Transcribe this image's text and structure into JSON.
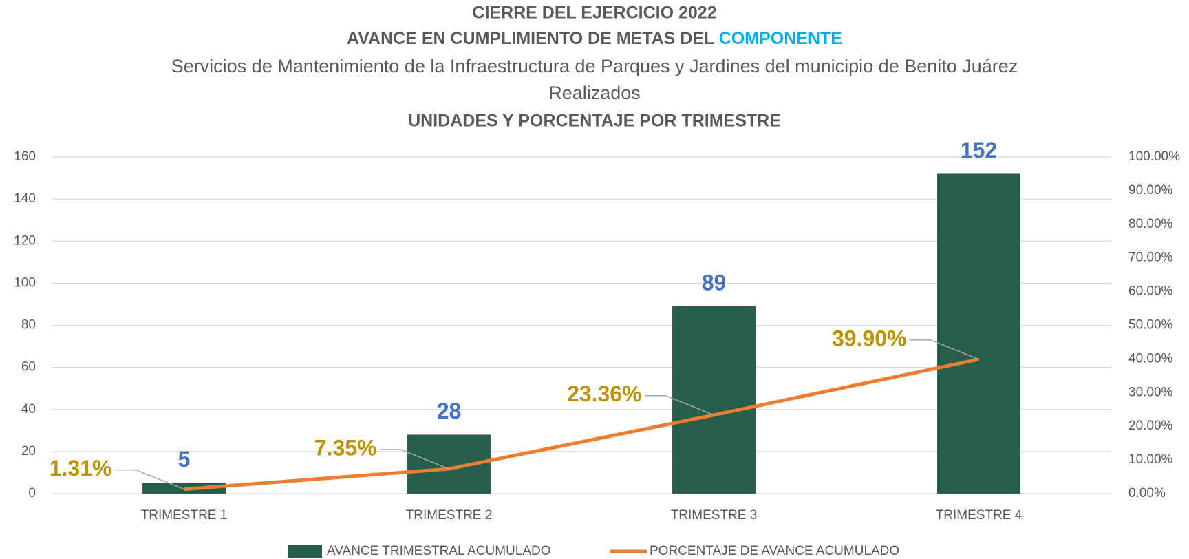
{
  "chart_data": {
    "type": "bar_line",
    "title": [
      "CIERRE DEL EJERCICIO 2022",
      "AVANCE EN CUMPLIMIENTO DE METAS DEL ",
      "COMPONENTE"
    ],
    "subtitle": [
      "Servicios de Mantenimiento de la Infraestructura de Parques y Jardines del municipio de Benito Juárez",
      "Realizados",
      "UNIDADES Y PORCENTAJE POR TRIMESTRE"
    ],
    "categories": [
      "TRIMESTRE 1",
      "TRIMESTRE 2",
      "TRIMESTRE 3",
      "TRIMESTRE 4"
    ],
    "series": [
      {
        "name": "AVANCE TRIMESTRAL ACUMULADO",
        "type": "bar",
        "color": "#265e4b",
        "label_color": "#4472c4",
        "values": [
          5,
          28,
          89,
          152
        ]
      },
      {
        "name": "PORCENTAJE DE AVANCE ACUMULADO",
        "type": "line",
        "axis": "y2",
        "color": "#ed7d31",
        "label_color": "#bf9000",
        "values": [
          1.31,
          7.35,
          23.36,
          39.9
        ],
        "value_labels": [
          "1.31%",
          "7.35%",
          "23.36%",
          "39.90%"
        ]
      }
    ],
    "ylim": [
      0,
      160
    ],
    "yticks": [
      0,
      20,
      40,
      60,
      80,
      100,
      120,
      140,
      160
    ],
    "y2lim": [
      0,
      100
    ],
    "y2ticks": [
      {
        "value": 0,
        "label": "0.00%"
      },
      {
        "value": 10,
        "label": "10.00%"
      },
      {
        "value": 20,
        "label": "20.00%"
      },
      {
        "value": 30,
        "label": "30.00%"
      },
      {
        "value": 40,
        "label": "40.00%"
      },
      {
        "value": 50,
        "label": "50.00%"
      },
      {
        "value": 60,
        "label": "60.00%"
      },
      {
        "value": 70,
        "label": "70.00%"
      },
      {
        "value": 80,
        "label": "80.00%"
      },
      {
        "value": 90,
        "label": "90.00%"
      },
      {
        "value": 100,
        "label": "100.00%"
      }
    ],
    "grid": true,
    "legend": "bottom",
    "title_highlight_color": "#00b0f0"
  }
}
